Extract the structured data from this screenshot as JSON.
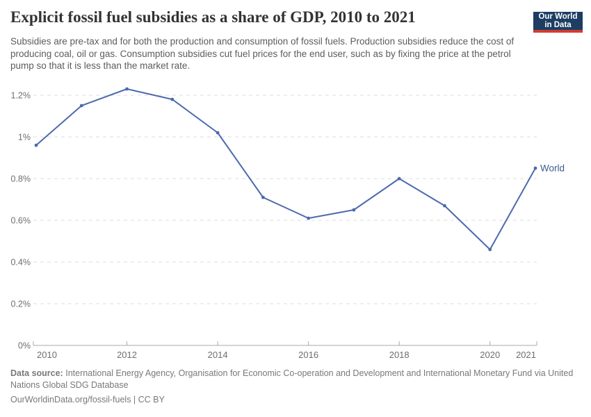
{
  "header": {
    "title": "Explicit fossil fuel subsidies as a share of GDP, 2010 to 2021",
    "subtitle": "Subsidies are pre-tax and for both the production and consumption of fossil fuels. Production subsidies reduce the cost of producing coal, oil or gas. Consumption subsidies cut fuel prices for the end user, such as by fixing the price at the petrol pump so that it is less than the market rate.",
    "logo": {
      "line1": "Our World",
      "line2": "in Data"
    }
  },
  "chart_data": {
    "type": "line",
    "title": "Explicit fossil fuel subsidies as a share of GDP, 2010 to 2021",
    "x": [
      2010,
      2011,
      2012,
      2013,
      2014,
      2015,
      2016,
      2017,
      2018,
      2019,
      2020,
      2021
    ],
    "series": [
      {
        "name": "World",
        "color": "#4c6aac",
        "label_color": "#3d5c94",
        "values": [
          0.96,
          1.15,
          1.23,
          1.18,
          1.02,
          0.71,
          0.61,
          0.65,
          0.8,
          0.67,
          0.46,
          0.85
        ]
      }
    ],
    "unit": "% of GDP",
    "ylim": [
      0,
      1.2
    ],
    "yticks": {
      "values": [
        0,
        0.2,
        0.4,
        0.6,
        0.8,
        1.0,
        1.2
      ],
      "labels": [
        "0%",
        "0.2%",
        "0.4%",
        "0.6%",
        "0.8%",
        "1%",
        "1.2%"
      ]
    },
    "xticks": [
      2010,
      2012,
      2014,
      2016,
      2018,
      2020,
      2021
    ],
    "grid": "horizontal-dashed",
    "legend_position": "end-of-line"
  },
  "footer": {
    "datasource_label": "Data source:",
    "datasource_text": "International Energy Agency, Organisation for Economic Co-operation and Development and International Monetary Fund via United Nations Global SDG Database",
    "license_text": "OurWorldinData.org/fossil-fuels | CC BY"
  },
  "colors": {
    "line": "#4c6aac",
    "series_label": "#3d5c94",
    "logo_bg": "#1d3d63",
    "logo_accent": "#d13c32",
    "grid": "#dcdcdc",
    "axis": "#a8a8a8",
    "tick_text": "#6e6e6e",
    "title_text": "#333333",
    "subtitle_text": "#5c5c5c",
    "footer_text": "#787878"
  }
}
